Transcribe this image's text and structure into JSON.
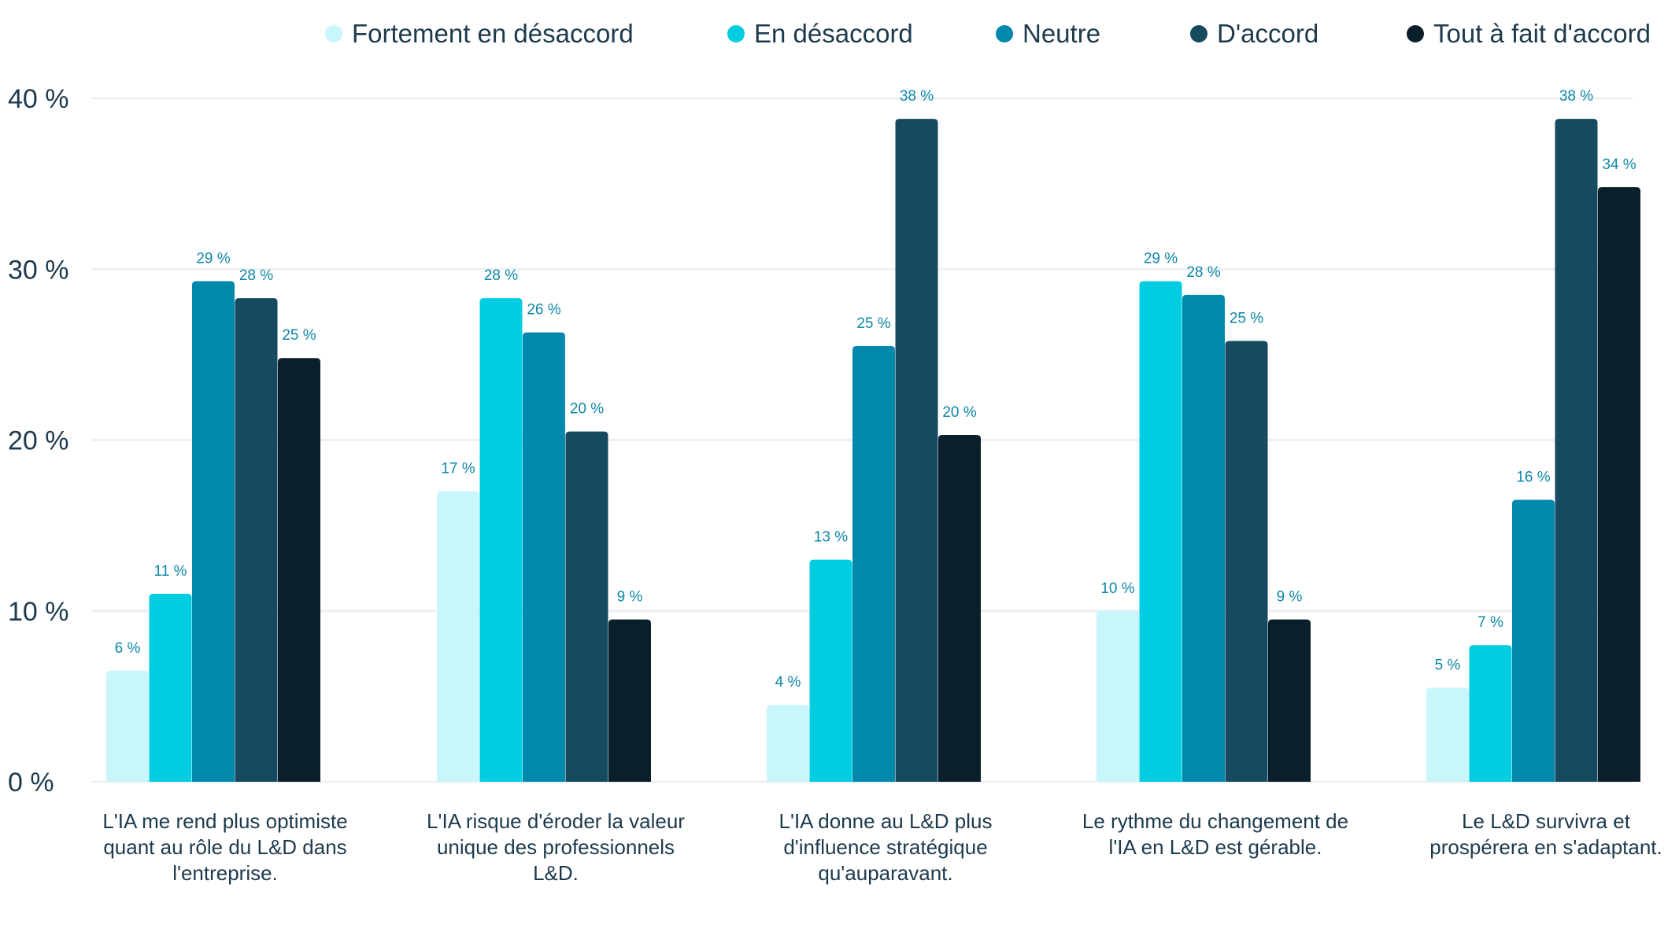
{
  "chart_data": {
    "type": "bar",
    "categories": [
      "L'IA me rend plus optimiste quant au rôle du L&D dans l'entreprise.",
      "L'IA risque d'éroder la valeur unique des professionnels L&D.",
      "L'IA donne au L&D plus d'influence stratégique qu'auparavant.",
      "Le rythme du changement de l'IA en L&D est gérable.",
      "Le L&D survivra et prospérera en s'adaptant."
    ],
    "series": [
      {
        "name": "Fortement en désaccord",
        "color": "#c8f6fb",
        "values": [
          6,
          17,
          4,
          10,
          5
        ]
      },
      {
        "name": "En désaccord",
        "color": "#00cde0",
        "values": [
          11,
          28,
          13,
          29,
          7
        ]
      },
      {
        "name": "Neutre",
        "color": "#0089ab",
        "values": [
          29,
          26,
          25,
          28,
          16
        ]
      },
      {
        "name": "D'accord",
        "color": "#164a61",
        "values": [
          28,
          20,
          38,
          25,
          38
        ]
      },
      {
        "name": "Tout à fait d'accord",
        "color": "#0b1f2b",
        "values": [
          25,
          9,
          20,
          9,
          34
        ]
      }
    ],
    "bar_heights": [
      [
        6.5,
        17.0,
        4.5,
        10.0,
        5.5
      ],
      [
        11.0,
        28.3,
        13.0,
        29.3,
        8.0
      ],
      [
        29.3,
        26.3,
        25.5,
        28.5,
        16.5
      ],
      [
        28.3,
        20.5,
        38.8,
        25.8,
        38.8
      ],
      [
        24.8,
        9.5,
        20.3,
        9.5,
        34.8
      ]
    ],
    "value_labels": [
      [
        "6 %",
        "17 %",
        "4 %",
        "10 %",
        "5 %"
      ],
      [
        "11 %",
        "28 %",
        "13 %",
        "29 %",
        "7 %"
      ],
      [
        "29 %",
        "26 %",
        "25 %",
        "28 %",
        "16 %"
      ],
      [
        "28 %",
        "20 %",
        "38 %",
        "25 %",
        "38 %"
      ],
      [
        "25 %",
        "9 %",
        "20 %",
        "9 %",
        "34 %"
      ]
    ],
    "yticks": [
      0,
      10,
      20,
      30,
      40
    ],
    "ytick_labels": [
      "0 %",
      "10 %",
      "20 %",
      "30 %",
      "40 %"
    ],
    "ylim": [
      0,
      40
    ],
    "grid": true,
    "legend_position": "top",
    "title": "",
    "xlabel": "",
    "ylabel": ""
  }
}
